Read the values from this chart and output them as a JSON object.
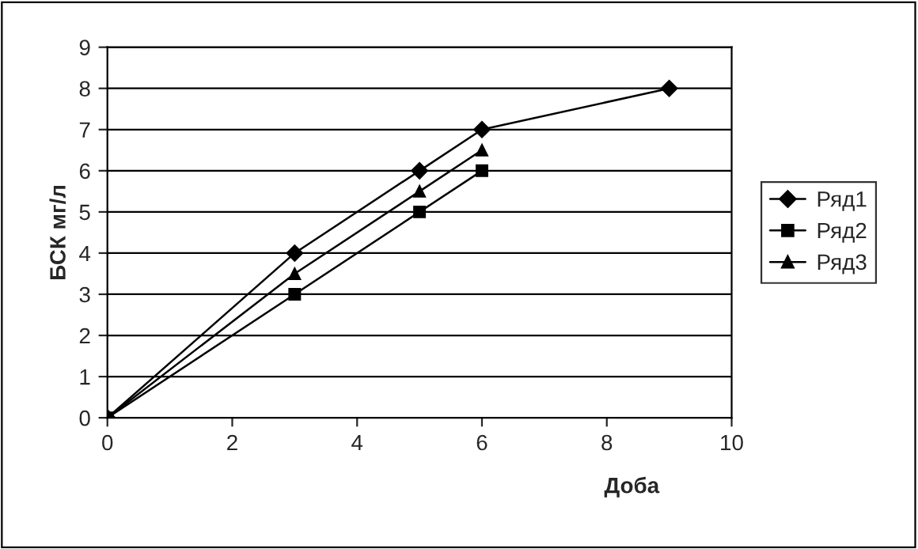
{
  "chart_data": {
    "type": "line",
    "xlabel": "Доба",
    "ylabel": "БСК мг/л",
    "xlim": [
      0,
      10
    ],
    "xticks": [
      0,
      2,
      4,
      6,
      8,
      10
    ],
    "ylim": [
      0,
      9
    ],
    "yticks": [
      0,
      1,
      2,
      3,
      4,
      5,
      6,
      7,
      8,
      9
    ],
    "grid": "y",
    "legend": "right",
    "line_style": "solid",
    "series": [
      {
        "name": "Ряд1",
        "color": "#000000",
        "marker": "diamond",
        "x": [
          0,
          3,
          5,
          6,
          9
        ],
        "values": [
          0,
          4,
          6,
          7,
          8
        ]
      },
      {
        "name": "Ряд2",
        "color": "#000000",
        "marker": "square",
        "x": [
          0,
          3,
          5,
          6
        ],
        "values": [
          0,
          3,
          5,
          6
        ]
      },
      {
        "name": "Ряд3",
        "color": "#000000",
        "marker": "triangle",
        "x": [
          0,
          3,
          5,
          6
        ],
        "values": [
          0,
          3.5,
          5.5,
          6.5
        ]
      }
    ]
  }
}
